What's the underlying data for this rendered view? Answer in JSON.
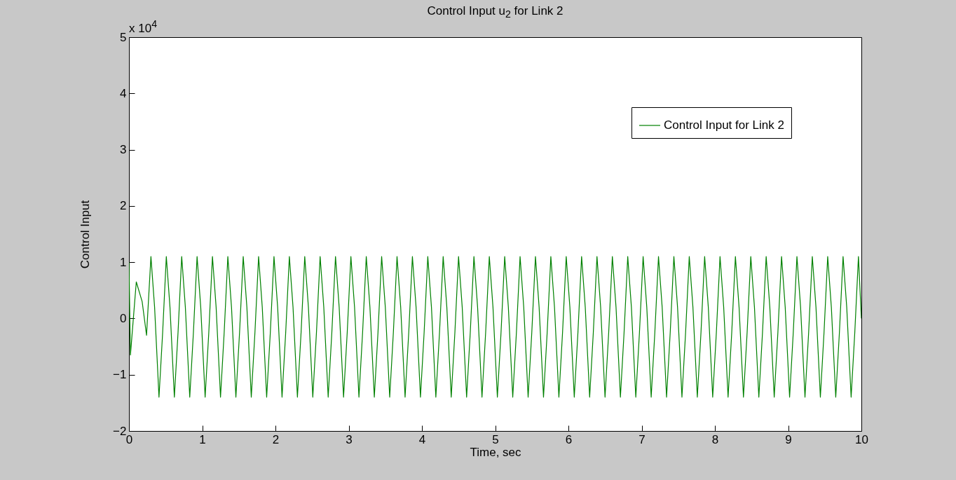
{
  "chart_data": {
    "type": "line",
    "title": "Control Input u$_{2}$ for Link 2",
    "xlabel": "Time, sec",
    "ylabel": "Control Input",
    "annotations": [
      "x 10$^{4}$"
    ],
    "xlim": [
      0,
      10
    ],
    "xticks": [
      0,
      1,
      2,
      3,
      4,
      5,
      6,
      7,
      8,
      9,
      10
    ],
    "ylim": [
      -2,
      5
    ],
    "yticks": [
      -2,
      -1,
      0,
      1,
      2,
      3,
      4,
      5
    ],
    "grid": false,
    "legend": "top right",
    "marker": "none",
    "line_style": "solid",
    "x": [
      0,
      0.02,
      0.1,
      0.18,
      0.24,
      0.3,
      0.35,
      0.41,
      0.46,
      0.51,
      0.56,
      0.62,
      0.67,
      0.72,
      0.77,
      0.83,
      0.88,
      0.93,
      0.98,
      1.04,
      1.09,
      1.14,
      1.19,
      1.25,
      1.3,
      1.35,
      1.4,
      1.46,
      1.51,
      1.56,
      1.61,
      1.67,
      1.72,
      1.77,
      1.82,
      1.88,
      1.93,
      1.98,
      2.03,
      2.09,
      2.14,
      2.19,
      2.24,
      2.3,
      2.35,
      2.4,
      2.45,
      2.51,
      2.56,
      2.61,
      2.66,
      2.72,
      2.77,
      2.82,
      2.87,
      2.93,
      2.98,
      3.03,
      3.08,
      3.14,
      3.19,
      3.24,
      3.29,
      3.35,
      3.4,
      3.45,
      3.5,
      3.56,
      3.61,
      3.66,
      3.71,
      3.77,
      3.82,
      3.87,
      3.92,
      3.98,
      4.03,
      4.08,
      4.13,
      4.19,
      4.24,
      4.29,
      4.34,
      4.4,
      4.45,
      4.5,
      4.55,
      4.61,
      4.66,
      4.71,
      4.76,
      4.82,
      4.87,
      4.92,
      4.97,
      5.03,
      5.08,
      5.13,
      5.18,
      5.24,
      5.29,
      5.34,
      5.39,
      5.45,
      5.5,
      5.55,
      5.6,
      5.66,
      5.71,
      5.76,
      5.81,
      5.87,
      5.92,
      5.97,
      6.02,
      6.08,
      6.13,
      6.18,
      6.23,
      6.29,
      6.34,
      6.39,
      6.44,
      6.5,
      6.55,
      6.6,
      6.65,
      6.71,
      6.76,
      6.81,
      6.86,
      6.92,
      6.97,
      7.02,
      7.07,
      7.13,
      7.18,
      7.23,
      7.28,
      7.34,
      7.39,
      7.44,
      7.49,
      7.55,
      7.6,
      7.65,
      7.7,
      7.76,
      7.81,
      7.86,
      7.91,
      7.97,
      8.02,
      8.07,
      8.12,
      8.18,
      8.23,
      8.28,
      8.33,
      8.39,
      8.44,
      8.49,
      8.54,
      8.6,
      8.65,
      8.7,
      8.75,
      8.81,
      8.86,
      8.91,
      8.96,
      9.02,
      9.07,
      9.12,
      9.17,
      9.23,
      9.28,
      9.33,
      9.38,
      9.44,
      9.49,
      9.54,
      9.59,
      9.65,
      9.7,
      9.75,
      9.8,
      9.86,
      9.91,
      9.96,
      10
    ],
    "series": [
      {
        "name": "Control Input for Link 2",
        "color": "#008000",
        "values": [
          1,
          -0.65,
          0.65,
          0.3,
          -0.3,
          1.1,
          0.2,
          -1.4,
          -0.25,
          1.1,
          0.2,
          -1.4,
          -0.25,
          1.1,
          0.2,
          -1.4,
          -0.25,
          1.1,
          0.2,
          -1.4,
          -0.25,
          1.1,
          0.2,
          -1.4,
          -0.25,
          1.1,
          0.2,
          -1.4,
          -0.25,
          1.1,
          0.2,
          -1.4,
          -0.25,
          1.1,
          0.2,
          -1.4,
          -0.25,
          1.1,
          0.2,
          -1.4,
          -0.25,
          1.1,
          0.2,
          -1.4,
          -0.25,
          1.1,
          0.2,
          -1.4,
          -0.25,
          1.1,
          0.2,
          -1.4,
          -0.25,
          1.1,
          0.2,
          -1.4,
          -0.25,
          1.1,
          0.2,
          -1.4,
          -0.25,
          1.1,
          0.2,
          -1.4,
          -0.25,
          1.1,
          0.2,
          -1.4,
          -0.25,
          1.1,
          0.2,
          -1.4,
          -0.25,
          1.1,
          0.2,
          -1.4,
          -0.25,
          1.1,
          0.2,
          -1.4,
          -0.25,
          1.1,
          0.2,
          -1.4,
          -0.25,
          1.1,
          0.2,
          -1.4,
          -0.25,
          1.1,
          0.2,
          -1.4,
          -0.25,
          1.1,
          0.2,
          -1.4,
          -0.25,
          1.1,
          0.2,
          -1.4,
          -0.25,
          1.1,
          0.2,
          -1.4,
          -0.25,
          1.1,
          0.2,
          -1.4,
          -0.25,
          1.1,
          0.2,
          -1.4,
          -0.25,
          1.1,
          0.2,
          -1.4,
          -0.25,
          1.1,
          0.2,
          -1.4,
          -0.25,
          1.1,
          0.2,
          -1.4,
          -0.25,
          1.1,
          0.2,
          -1.4,
          -0.25,
          1.1,
          0.2,
          -1.4,
          -0.25,
          1.1,
          0.2,
          -1.4,
          -0.25,
          1.1,
          0.2,
          -1.4,
          -0.25,
          1.1,
          0.2,
          -1.4,
          -0.25,
          1.1,
          0.2,
          -1.4,
          -0.25,
          1.1,
          0.2,
          -1.4,
          -0.25,
          1.1,
          0.2,
          -1.4,
          -0.25,
          1.1,
          0.2,
          -1.4,
          -0.25,
          1.1,
          0.2,
          -1.4,
          -0.25,
          1.1,
          0.2,
          -1.4,
          -0.25,
          1.1,
          0.2,
          -1.4,
          -0.25,
          1.1,
          0.2,
          -1.4,
          -0.25,
          1.1,
          0.2,
          -1.4,
          -0.25,
          1.1,
          0.2,
          -1.4,
          -0.25,
          1.1,
          0.2,
          -1.4,
          -0.25,
          1.1,
          0
        ]
      }
    ]
  }
}
